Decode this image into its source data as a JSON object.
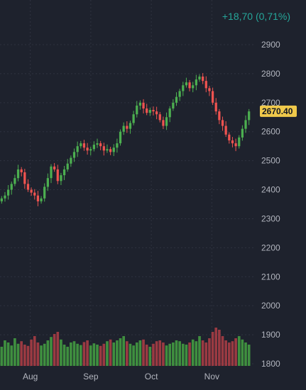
{
  "header": {
    "change_text": "+18,70 (0,71%)"
  },
  "price_tag": {
    "label": "2670.40",
    "value": 2670.4
  },
  "colors": {
    "background": "#1e222d",
    "up": "#26a69a",
    "up_candle": "#4caf50",
    "down": "#ef5350",
    "volume_up": "#3f8f3f",
    "volume_down": "#9a3a42",
    "grid": "#2f3340",
    "axis_text": "#b2b5be",
    "price_tag_bg": "#f0c94b"
  },
  "chart_data": {
    "type": "candlestick",
    "title": "",
    "xlabel": "",
    "ylabel": "",
    "ylim": [
      1780,
      2940
    ],
    "y_ticks": [
      2900,
      2800,
      2700,
      2600,
      2500,
      2400,
      2300,
      2200,
      2100,
      2000,
      1900,
      1800
    ],
    "x_ticks": [
      "Aug",
      "Sep",
      "Oct",
      "Nov"
    ],
    "x_tick_positions": [
      10,
      30,
      50,
      70
    ],
    "grid": true,
    "x_start": 0,
    "x_end": 84,
    "close": [
      2370,
      2380,
      2400,
      2420,
      2440,
      2470,
      2460,
      2420,
      2400,
      2390,
      2380,
      2360,
      2370,
      2410,
      2440,
      2480,
      2470,
      2430,
      2450,
      2470,
      2490,
      2510,
      2530,
      2550,
      2560,
      2545,
      2535,
      2540,
      2555,
      2560,
      2550,
      2535,
      2540,
      2530,
      2545,
      2560,
      2600,
      2620,
      2610,
      2630,
      2660,
      2690,
      2700,
      2680,
      2665,
      2675,
      2670,
      2660,
      2640,
      2620,
      2650,
      2680,
      2700,
      2720,
      2740,
      2760,
      2770,
      2750,
      2760,
      2780,
      2790,
      2775,
      2750,
      2740,
      2700,
      2670,
      2640,
      2620,
      2590,
      2570,
      2560,
      2550,
      2580,
      2610,
      2640,
      2670
    ],
    "volume": [
      45,
      60,
      55,
      48,
      65,
      52,
      58,
      50,
      47,
      62,
      70,
      55,
      48,
      52,
      60,
      68,
      75,
      80,
      62,
      50,
      45,
      55,
      58,
      52,
      49,
      56,
      60,
      48,
      53,
      50,
      47,
      52,
      58,
      62,
      55,
      60,
      65,
      70,
      58,
      52,
      48,
      55,
      60,
      62,
      50,
      45,
      52,
      58,
      60,
      55,
      48,
      52,
      55,
      60,
      58,
      52,
      50,
      55,
      62,
      58,
      70,
      60,
      55,
      65,
      80,
      90,
      85,
      70,
      60,
      55,
      58,
      65,
      70,
      62,
      55,
      50
    ],
    "volume_max": 100
  }
}
